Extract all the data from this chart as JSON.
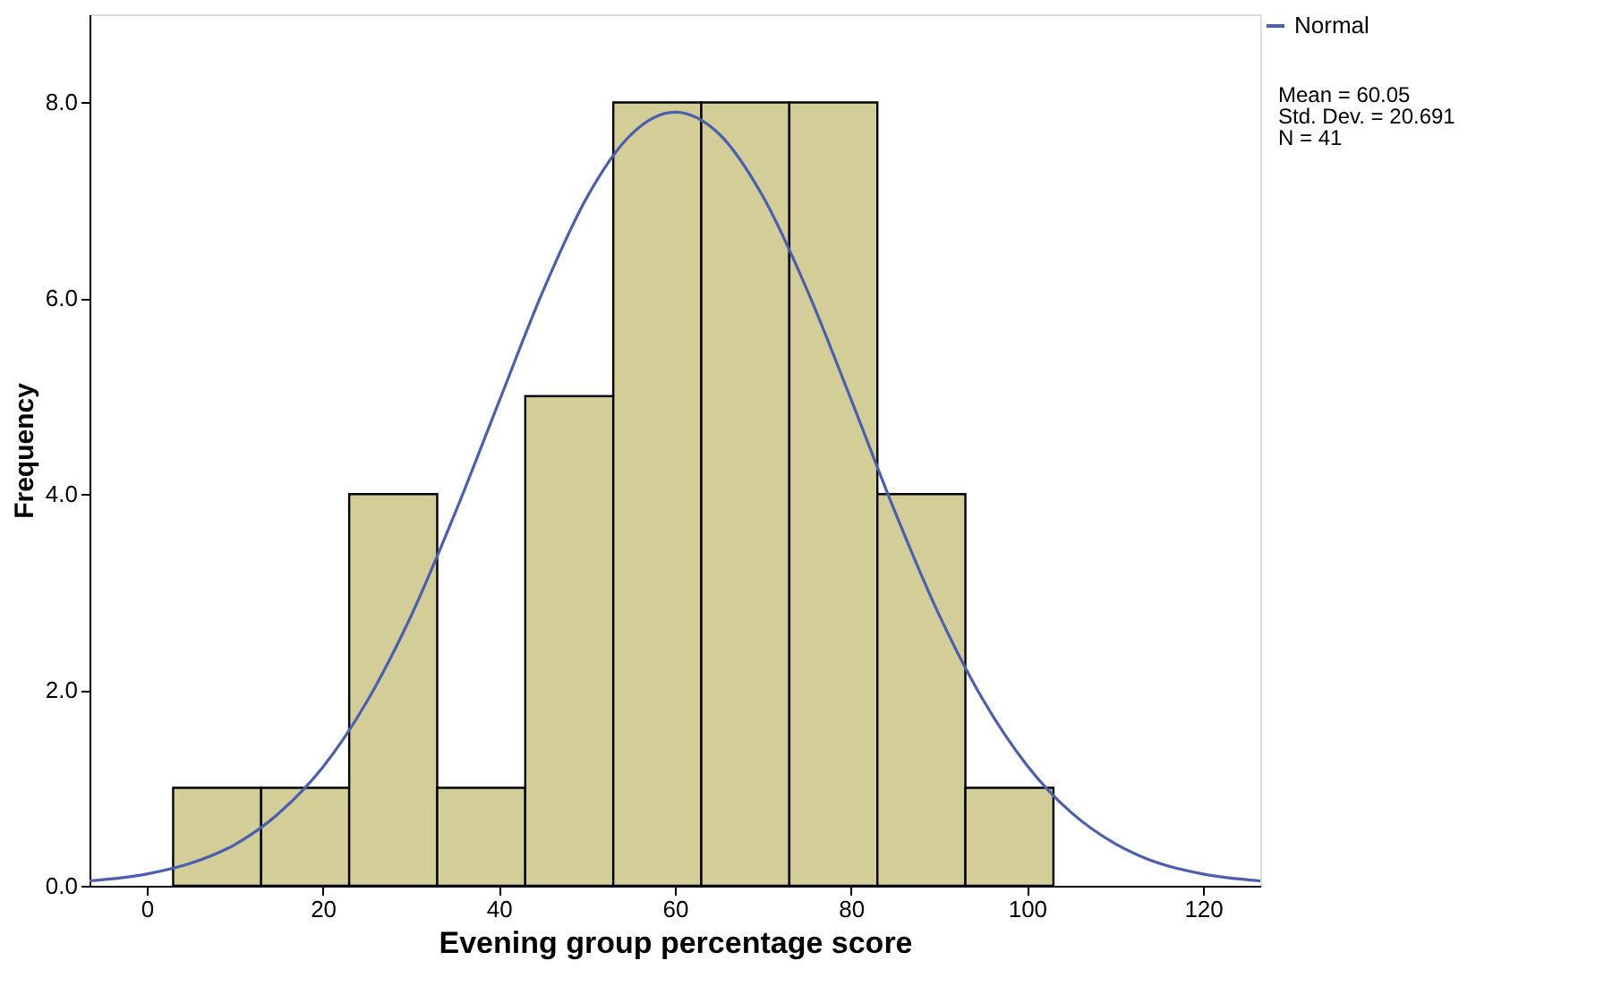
{
  "chart_data": {
    "type": "histogram",
    "xlabel": "Evening group percentage score",
    "ylabel": "Frequency",
    "bins": [
      3,
      13,
      23,
      33,
      43,
      53,
      63,
      73,
      83,
      93,
      103
    ],
    "values": [
      1,
      1,
      4,
      1,
      5,
      8,
      8,
      8,
      4,
      1
    ],
    "color": "#d3ce97",
    "series": [
      {
        "name": "Normal",
        "type": "line",
        "color": "#4a5fb0",
        "x": [
          -6.5,
          0,
          5,
          10,
          15,
          20,
          25,
          30,
          35,
          40,
          45,
          50,
          55,
          60,
          65,
          70,
          75,
          80,
          85,
          90,
          95,
          100,
          105,
          110,
          115,
          120,
          126.5
        ],
        "values": [
          0.05,
          0.12,
          0.23,
          0.42,
          0.74,
          1.21,
          1.88,
          2.75,
          3.8,
          4.94,
          6.07,
          7.03,
          7.67,
          7.9,
          7.68,
          7.04,
          6.09,
          4.97,
          3.82,
          2.77,
          1.9,
          1.23,
          0.75,
          0.43,
          0.23,
          0.12,
          0.05
        ]
      }
    ],
    "xlim": [
      -6.5,
      126.5
    ],
    "xticks": [
      0,
      20,
      40,
      60,
      80,
      100,
      120
    ],
    "ylim": [
      0,
      8.9
    ],
    "yticks": [
      {
        "value": 0,
        "label": "0.0"
      },
      {
        "value": 2,
        "label": "2.0"
      },
      {
        "value": 4,
        "label": "4.0"
      },
      {
        "value": 6,
        "label": "6.0"
      },
      {
        "value": 8,
        "label": "8.0"
      }
    ],
    "grid": false,
    "legend": "top right",
    "annotations": [
      "Mean = 60.05",
      "Std. Dev. = 20.691",
      "N = 41"
    ]
  }
}
